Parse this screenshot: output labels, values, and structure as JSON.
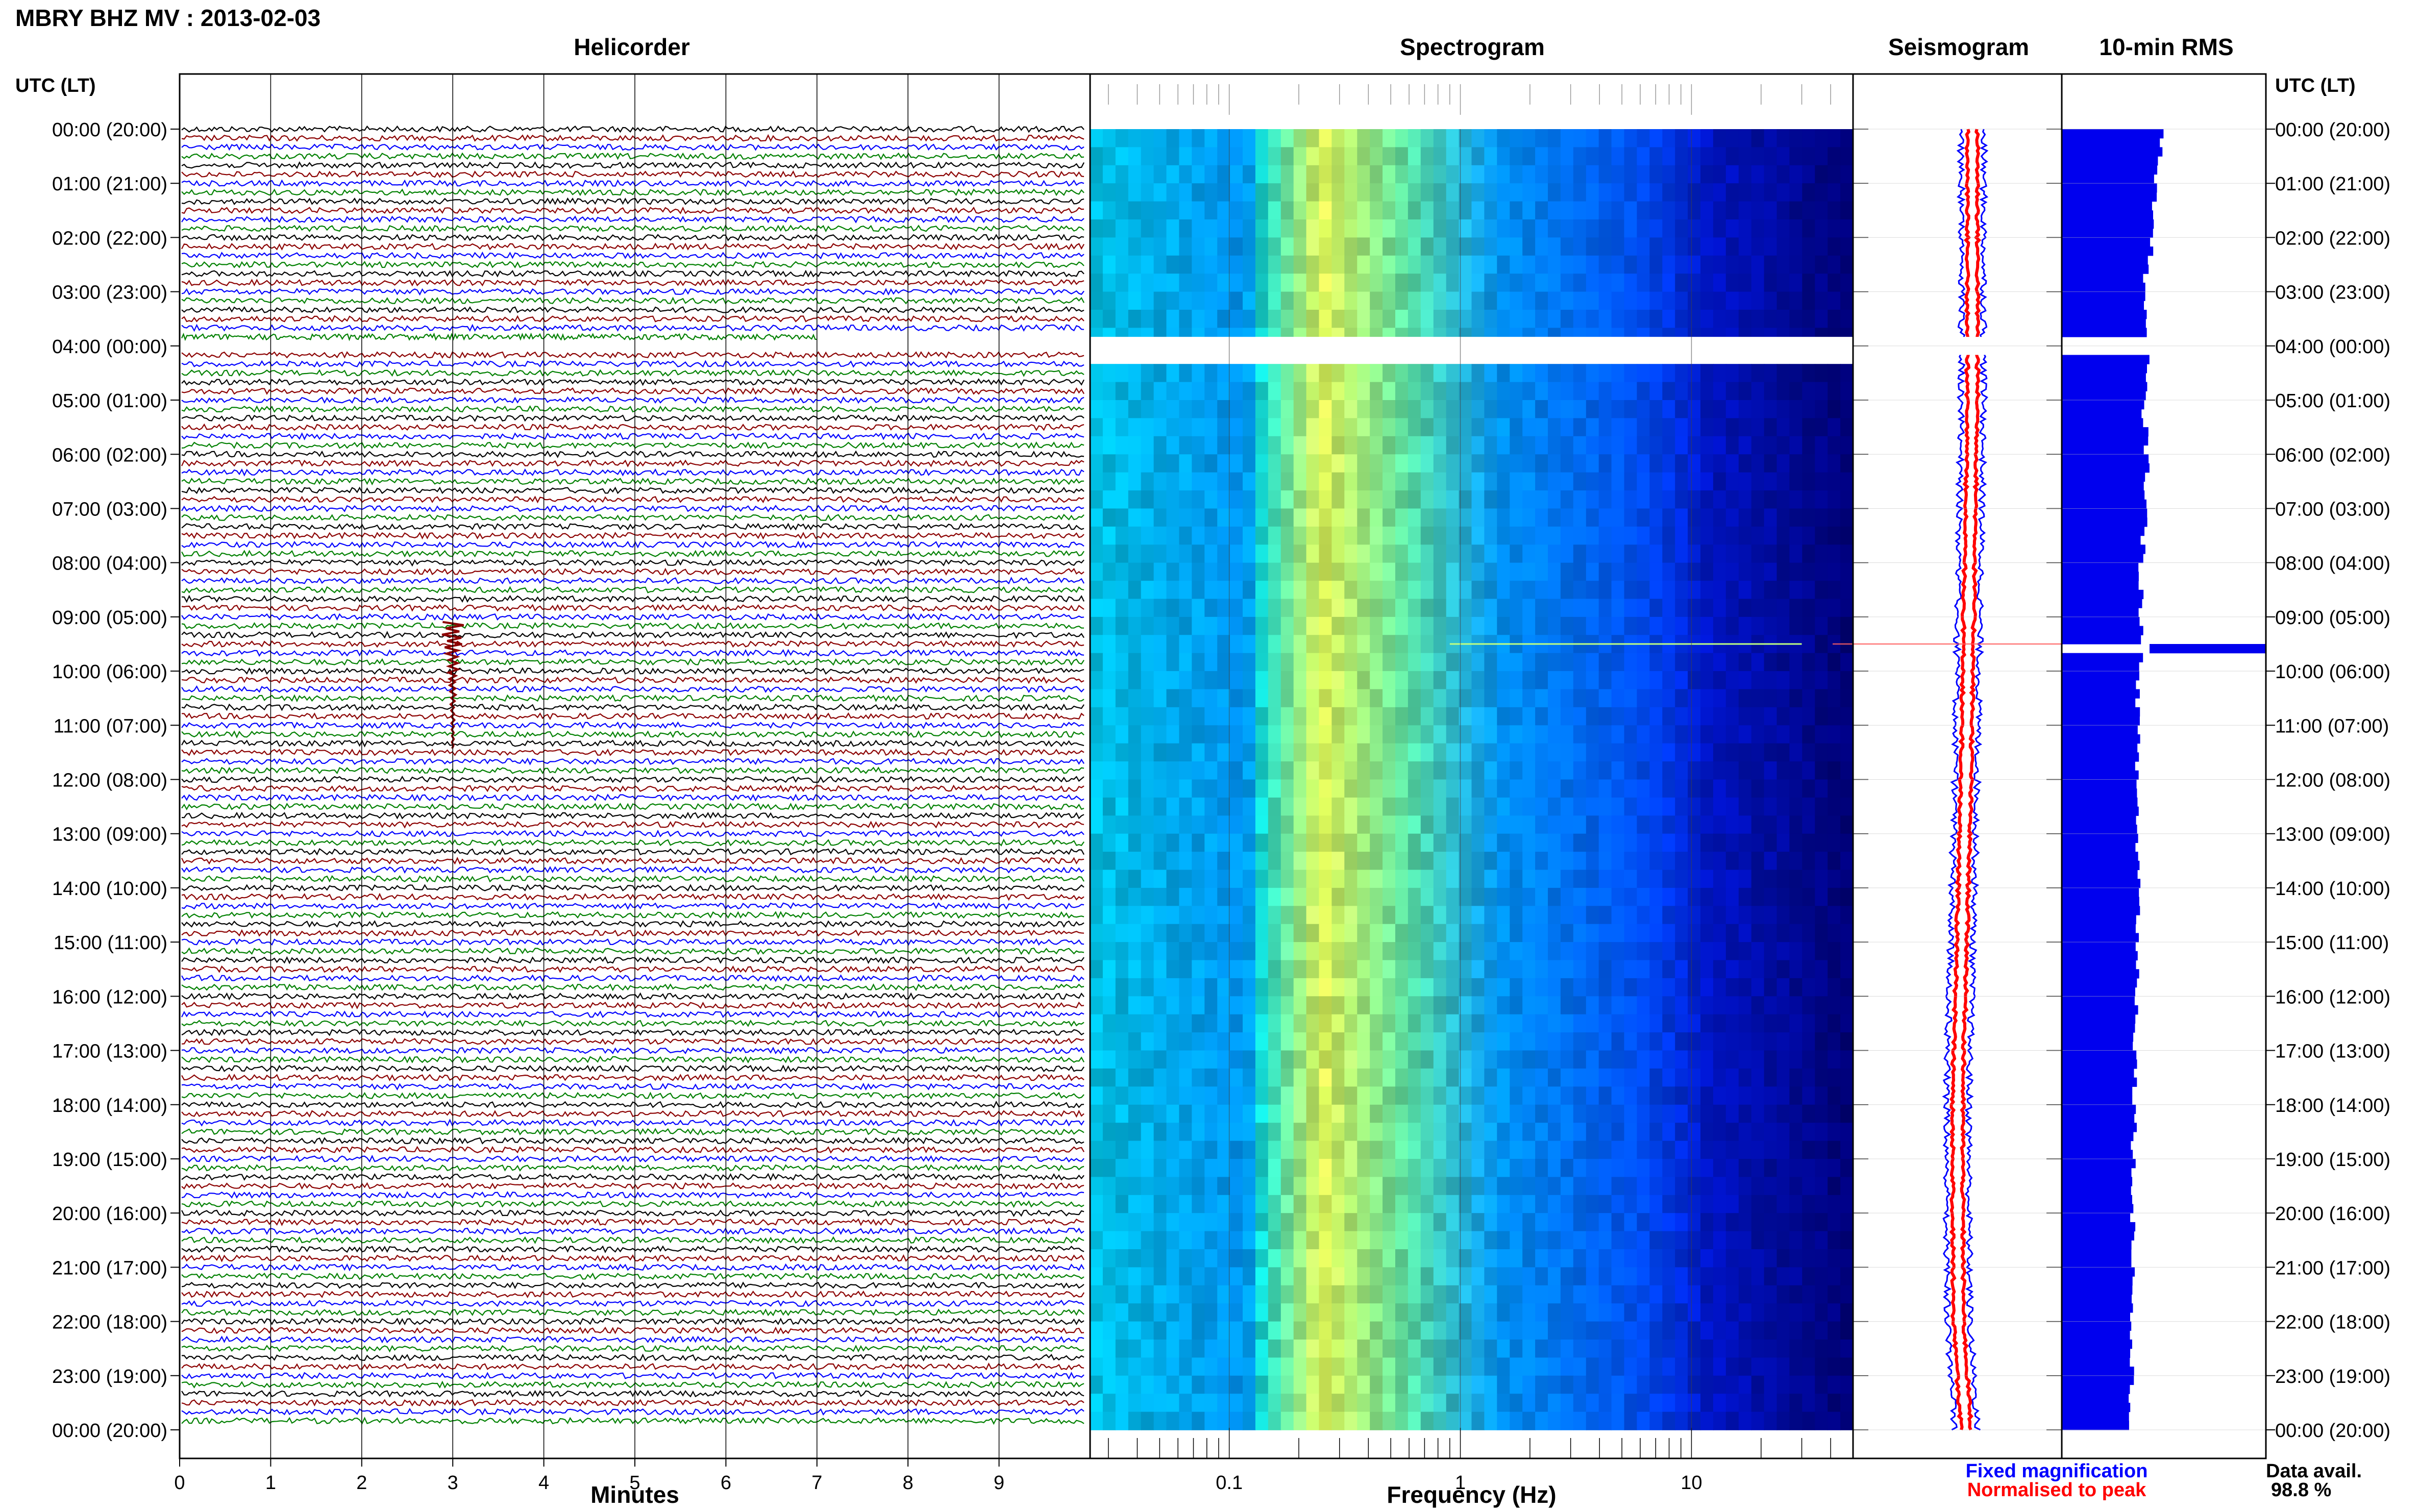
{
  "title": "MBRY BHZ MV : 2013-02-03",
  "panels": {
    "helicorder": "Helicorder",
    "spectrogram": "Spectrogram",
    "seismogram": "Seismogram",
    "rms": "10-min RMS"
  },
  "time_axis_label": "UTC (LT)",
  "time_labels": [
    "00:00 (20:00)",
    "01:00 (21:00)",
    "02:00 (22:00)",
    "03:00 (23:00)",
    "04:00 (00:00)",
    "05:00 (01:00)",
    "06:00 (02:00)",
    "07:00 (03:00)",
    "08:00 (04:00)",
    "09:00 (05:00)",
    "10:00 (06:00)",
    "11:00 (07:00)",
    "12:00 (08:00)",
    "13:00 (09:00)",
    "14:00 (10:00)",
    "15:00 (11:00)",
    "16:00 (12:00)",
    "17:00 (13:00)",
    "18:00 (14:00)",
    "19:00 (15:00)",
    "20:00 (16:00)",
    "21:00 (17:00)",
    "22:00 (18:00)",
    "23:00 (19:00)",
    "00:00 (20:00)"
  ],
  "legend": {
    "fixed": "Fixed magnification",
    "normalised": "Normalised to peak",
    "fixed_color": "#0000ff",
    "normalised_color": "#ff0000"
  },
  "data_avail_label": "Data avail.",
  "data_avail_value": "98.8 %",
  "chart_data": [
    {
      "type": "line",
      "title": "Helicorder",
      "xlabel": "Minutes",
      "x_ticks": [
        "0",
        "1",
        "2",
        "3",
        "4",
        "5",
        "6",
        "7",
        "8",
        "9"
      ],
      "xlim": [
        0,
        10
      ],
      "ylim_hours_utc": [
        0,
        24
      ],
      "trace_interval_minutes": 10,
      "trace_colors": [
        "#000000",
        "#8b0000",
        "#0000ff",
        "#008000"
      ],
      "data_gap_utc": [
        "03:50",
        "04:10"
      ],
      "events": [
        {
          "utc": "09:00",
          "minute": 3.0,
          "description": "large amplitude burst"
        }
      ]
    },
    {
      "type": "heatmap",
      "title": "Spectrogram",
      "xlabel": "Frequency (Hz)",
      "x_scale": "log",
      "x_ticks": [
        "0.1",
        "1",
        "10"
      ],
      "xlim": [
        0.025,
        50
      ],
      "ylim_hours_utc": [
        0,
        24
      ],
      "colors": [
        "#00ccff",
        "#ffff40",
        "#0055ff",
        "#000080"
      ],
      "data_gap_utc": [
        "03:50",
        "04:10"
      ]
    },
    {
      "type": "line",
      "title": "Seismogram",
      "series": [
        {
          "name": "Fixed magnification",
          "color": "#0000ff"
        },
        {
          "name": "Normalised to peak",
          "color": "#ff0000"
        }
      ],
      "hours_utc": [
        0,
        1,
        2,
        3,
        4,
        5,
        6,
        7,
        8,
        9,
        10,
        11,
        12,
        13,
        14,
        15,
        16,
        17,
        18,
        19,
        20,
        21,
        22,
        23,
        24
      ],
      "offset_relative": [
        0.3,
        0.3,
        0.3,
        0.3,
        0.3,
        0.3,
        0.28,
        0.26,
        0.24,
        0.22,
        0.2,
        0.18,
        0.16,
        0.13,
        0.1,
        0.07,
        0.04,
        0.0,
        -0.02,
        -0.02,
        -0.02,
        -0.01,
        0.0,
        0.08,
        0.16
      ]
    },
    {
      "type": "bar",
      "title": "10-min RMS",
      "hours_utc": [
        0,
        1,
        2,
        3,
        4,
        5,
        6,
        7,
        8,
        9,
        9.5,
        10,
        11,
        12,
        13,
        14,
        15,
        16,
        17,
        18,
        19,
        20,
        21,
        22,
        23,
        24
      ],
      "values": [
        0.49,
        0.46,
        0.44,
        0.4,
        0.42,
        0.4,
        0.42,
        0.41,
        0.39,
        0.39,
        1.0,
        0.38,
        0.37,
        0.37,
        0.37,
        0.38,
        0.37,
        0.37,
        0.36,
        0.36,
        0.35,
        0.35,
        0.35,
        0.34,
        0.34,
        0.33
      ],
      "data_gap_utc": [
        "03:50",
        "04:10"
      ]
    }
  ]
}
